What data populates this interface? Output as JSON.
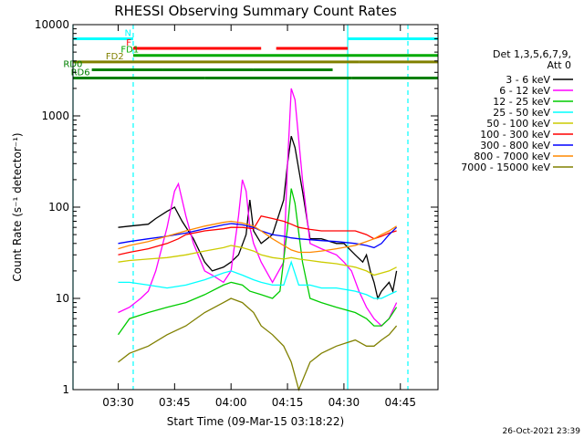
{
  "chart_data": {
    "type": "line",
    "title": "RHESSI Observing Summary Count Rates",
    "xlabel": "Start Time (09-Mar-15 03:18:22)",
    "ylabel": "Count Rate (s⁻¹ detector⁻¹)",
    "yscale": "log",
    "ylim": [
      1,
      10000
    ],
    "xlim_minutes": [
      0,
      97
    ],
    "x_units": "minutes after 03:18:22",
    "x_ticks": [
      {
        "t": 12,
        "label": "03:30"
      },
      {
        "t": 27,
        "label": "03:45"
      },
      {
        "t": 42,
        "label": "04:00"
      },
      {
        "t": 57,
        "label": "04:15"
      },
      {
        "t": 72,
        "label": "04:30"
      },
      {
        "t": 87,
        "label": "04:45"
      }
    ],
    "y_ticks": [
      {
        "v": 1,
        "label": "1"
      },
      {
        "v": 10,
        "label": "10"
      },
      {
        "v": 100,
        "label": "100"
      },
      {
        "v": 1000,
        "label": "1000"
      },
      {
        "v": 10000,
        "label": "10000"
      }
    ],
    "legend": {
      "header": [
        "Det 1,3,5,6,7,9,",
        "Att 0"
      ],
      "placement": "right"
    },
    "series": [
      {
        "name": "3 - 6 keV",
        "color": "#000000",
        "x": [
          12,
          15,
          20,
          22,
          25,
          27,
          29,
          32,
          35,
          37,
          40,
          42,
          44,
          46,
          47,
          48,
          50,
          53,
          56,
          57,
          58,
          59,
          61,
          63,
          66,
          70,
          72,
          75,
          77,
          78,
          79,
          80,
          81,
          82,
          84,
          85,
          86
        ],
        "y": [
          60,
          62,
          65,
          75,
          90,
          100,
          70,
          45,
          25,
          20,
          22,
          25,
          30,
          50,
          120,
          55,
          40,
          50,
          120,
          300,
          600,
          450,
          150,
          45,
          45,
          40,
          40,
          30,
          25,
          30,
          20,
          15,
          10,
          12,
          15,
          12,
          20
        ]
      },
      {
        "name": "6 - 12 keV",
        "color": "#ff00ff",
        "x": [
          12,
          15,
          18,
          20,
          22,
          25,
          27,
          28,
          30,
          32,
          35,
          37,
          40,
          42,
          44,
          45,
          46,
          47,
          48,
          50,
          53,
          56,
          57,
          58,
          59,
          61,
          63,
          66,
          70,
          72,
          74,
          76,
          78,
          80,
          82,
          84,
          86
        ],
        "y": [
          7,
          8,
          10,
          12,
          20,
          60,
          150,
          180,
          80,
          40,
          20,
          18,
          15,
          20,
          80,
          200,
          150,
          60,
          40,
          25,
          15,
          25,
          300,
          2000,
          1500,
          200,
          40,
          35,
          30,
          25,
          20,
          12,
          8,
          6,
          5,
          6,
          9
        ]
      },
      {
        "name": "12 - 25 keV",
        "color": "#00cc00",
        "x": [
          12,
          15,
          20,
          25,
          30,
          35,
          40,
          42,
          45,
          47,
          50,
          53,
          55,
          57,
          58,
          59,
          61,
          63,
          66,
          70,
          75,
          78,
          80,
          82,
          84,
          86
        ],
        "y": [
          4,
          6,
          7,
          8,
          9,
          11,
          14,
          15,
          14,
          12,
          11,
          10,
          12,
          60,
          160,
          110,
          25,
          10,
          9,
          8,
          7,
          6,
          5,
          5,
          6,
          8
        ]
      },
      {
        "name": "25 - 50 keV",
        "color": "#00ffff",
        "x": [
          12,
          15,
          20,
          25,
          30,
          35,
          40,
          42,
          45,
          48,
          50,
          53,
          56,
          58,
          60,
          63,
          66,
          70,
          75,
          78,
          80,
          82,
          84,
          86
        ],
        "y": [
          15,
          15,
          14,
          13,
          14,
          16,
          19,
          20,
          18,
          16,
          15,
          14,
          14,
          25,
          14,
          14,
          13,
          13,
          12,
          11,
          10,
          10,
          11,
          12
        ]
      },
      {
        "name": "50 - 100 keV",
        "color": "#cccc00",
        "x": [
          12,
          15,
          20,
          25,
          30,
          35,
          40,
          42,
          45,
          48,
          50,
          53,
          56,
          58,
          60,
          63,
          66,
          70,
          75,
          78,
          80,
          84,
          86
        ],
        "y": [
          25,
          26,
          27,
          28,
          30,
          33,
          36,
          38,
          36,
          33,
          30,
          28,
          27,
          28,
          27,
          26,
          25,
          24,
          22,
          20,
          18,
          20,
          22
        ]
      },
      {
        "name": "100 - 300 keV",
        "color": "#ff0000",
        "x": [
          12,
          15,
          20,
          25,
          28,
          30,
          35,
          40,
          42,
          45,
          48,
          50,
          53,
          56,
          58,
          60,
          63,
          66,
          70,
          75,
          78,
          80,
          82,
          84,
          86
        ],
        "y": [
          30,
          32,
          35,
          40,
          45,
          50,
          55,
          58,
          60,
          60,
          58,
          80,
          75,
          70,
          65,
          60,
          57,
          55,
          55,
          55,
          50,
          45,
          48,
          52,
          55
        ]
      },
      {
        "name": "300 - 800 keV",
        "color": "#0000ff",
        "x": [
          12,
          15,
          20,
          25,
          30,
          35,
          40,
          42,
          45,
          48,
          50,
          53,
          56,
          58,
          60,
          63,
          66,
          70,
          75,
          78,
          80,
          82,
          84,
          86
        ],
        "y": [
          40,
          42,
          45,
          48,
          52,
          58,
          64,
          66,
          64,
          60,
          55,
          50,
          48,
          46,
          45,
          44,
          43,
          42,
          40,
          38,
          36,
          40,
          50,
          60
        ]
      },
      {
        "name": "800 - 7000 keV",
        "color": "#ff8800",
        "x": [
          12,
          15,
          20,
          25,
          30,
          35,
          40,
          42,
          45,
          48,
          50,
          53,
          56,
          58,
          60,
          63,
          66,
          70,
          75,
          78,
          80,
          82,
          84,
          86
        ],
        "y": [
          35,
          38,
          42,
          48,
          55,
          62,
          68,
          70,
          67,
          62,
          55,
          45,
          38,
          34,
          32,
          32,
          33,
          35,
          38,
          42,
          45,
          50,
          55,
          62
        ]
      },
      {
        "name": "7000 - 15000 keV",
        "color": "#808000",
        "x": [
          12,
          15,
          20,
          25,
          30,
          35,
          40,
          42,
          45,
          48,
          50,
          53,
          56,
          58,
          60,
          63,
          66,
          70,
          75,
          78,
          80,
          82,
          84,
          86
        ],
        "y": [
          2,
          2.5,
          3,
          4,
          5,
          7,
          9,
          10,
          9,
          7,
          5,
          4,
          3,
          2,
          1,
          2,
          2.5,
          3,
          3.5,
          3,
          3,
          3.5,
          4,
          5
        ]
      }
    ],
    "state_bars": [
      {
        "label": "N",
        "color": "#00ffff",
        "segments": [
          [
            0,
            16
          ],
          [
            73,
            97
          ]
        ],
        "level": 7000,
        "label_at": 16
      },
      {
        "label": "F",
        "color": "#ff0000",
        "segments": [
          [
            16,
            50
          ],
          [
            54,
            73
          ]
        ],
        "level": 5500,
        "label_at": 16
      },
      {
        "label": "FD1",
        "color": "#00aa00",
        "segments": [
          [
            16,
            97
          ]
        ],
        "level": 4600,
        "label_at": 18
      },
      {
        "label": "FD2",
        "color": "#808000",
        "segments": [
          [
            0,
            16
          ],
          [
            16,
            76
          ],
          [
            76,
            97
          ]
        ],
        "level": 3900,
        "label_at": 14
      },
      {
        "label": "RD0",
        "color": "#008000",
        "segments": [
          [
            5,
            24
          ],
          [
            24,
            48
          ],
          [
            48,
            69
          ]
        ],
        "level": 3200,
        "label_at": 3
      },
      {
        "label": "RD6",
        "color": "#008000",
        "segments": [
          [
            0,
            12
          ],
          [
            12,
            35
          ],
          [
            35,
            74
          ],
          [
            74,
            97
          ]
        ],
        "level": 2600,
        "label_at": 5
      }
    ],
    "vertical_lines": [
      {
        "t": 0,
        "color": "#00ffff",
        "style": "solid"
      },
      {
        "t": 16,
        "color": "#00ffff",
        "style": "dashed"
      },
      {
        "t": 73,
        "color": "#00ffff",
        "style": "solid"
      },
      {
        "t": 89,
        "color": "#00ffff",
        "style": "dashed"
      }
    ],
    "timestamp": "26-Oct-2021 23:39"
  }
}
